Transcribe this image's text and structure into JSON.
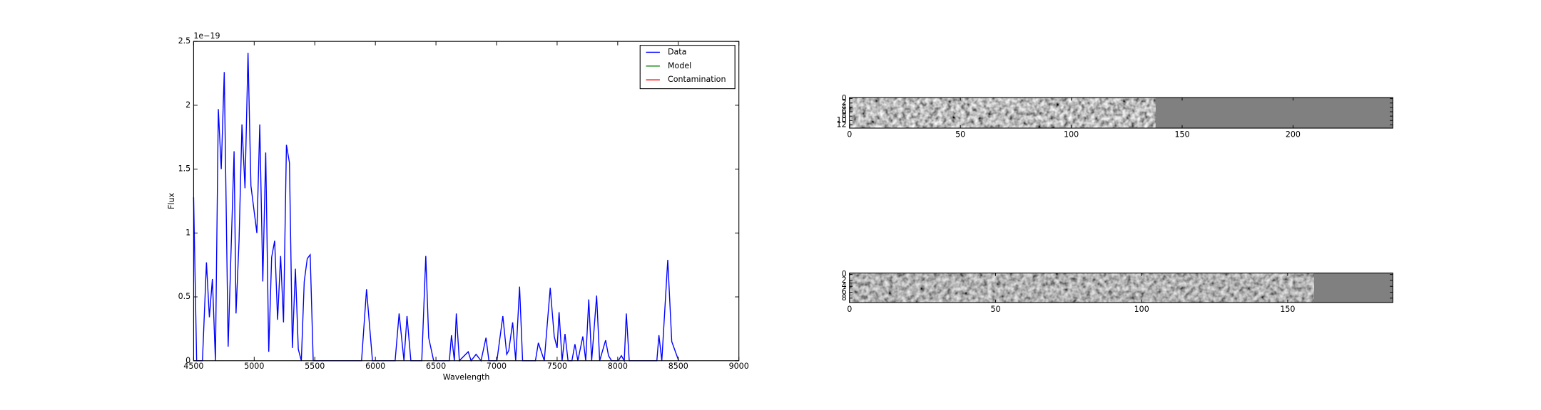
{
  "chart_data": [
    {
      "type": "line",
      "x_label": "Wavelength",
      "y_label": "Flux",
      "y_offset_label": "1e−19",
      "xlim": [
        4500,
        9000
      ],
      "xticks": [
        4500,
        5000,
        5500,
        6000,
        6500,
        7000,
        7500,
        8000,
        8500,
        9000
      ],
      "ylim": [
        0,
        2.5
      ],
      "yticks": [
        0.0,
        0.5,
        1.0,
        1.5,
        2.0,
        2.5
      ],
      "legend": "upper right",
      "x": [
        4500,
        4525,
        4573,
        4606,
        4630,
        4655,
        4680,
        4704,
        4728,
        4753,
        4785,
        4834,
        4850,
        4875,
        4899,
        4924,
        4949,
        4973,
        5022,
        5046,
        5071,
        5095,
        5120,
        5144,
        5169,
        5193,
        5218,
        5242,
        5266,
        5291,
        5315,
        5340,
        5364,
        5389,
        5413,
        5438,
        5462,
        5487,
        5886,
        5927,
        5976,
        6163,
        6196,
        6236,
        6261,
        6293,
        6383,
        6416,
        6440,
        6481,
        6611,
        6628,
        6652,
        6668,
        6693,
        6766,
        6790,
        6831,
        6872,
        6913,
        6937,
        7003,
        7052,
        7084,
        7101,
        7133,
        7158,
        7190,
        7215,
        7321,
        7345,
        7394,
        7443,
        7476,
        7500,
        7516,
        7541,
        7565,
        7590,
        7622,
        7647,
        7671,
        7712,
        7736,
        7761,
        7785,
        7826,
        7851,
        7900,
        7924,
        7949,
        8005,
        8030,
        8054,
        8071,
        8095,
        8323,
        8340,
        8364,
        8413,
        8446,
        8503
      ],
      "series": [
        {
          "name": "Data",
          "color": "#0000ff",
          "values": [
            1.28,
            0,
            0,
            0.77,
            0.34,
            0.64,
            0,
            1.97,
            1.5,
            2.26,
            0.11,
            1.64,
            0.37,
            0.94,
            1.85,
            1.35,
            2.41,
            1.37,
            1.0,
            1.85,
            0.62,
            1.63,
            0.07,
            0.81,
            0.94,
            0.32,
            0.82,
            0.3,
            1.69,
            1.55,
            0.1,
            0.72,
            0.09,
            0,
            0.62,
            0.8,
            0.83,
            0,
            0,
            0.56,
            0,
            0,
            0.37,
            0,
            0.35,
            0,
            0,
            0.82,
            0.18,
            0,
            0,
            0.2,
            0,
            0.37,
            0,
            0.07,
            0,
            0.05,
            0,
            0.18,
            0,
            0,
            0.35,
            0.05,
            0.08,
            0.3,
            0,
            0.58,
            0,
            0,
            0.14,
            0,
            0.57,
            0.19,
            0.1,
            0.38,
            0,
            0.21,
            0,
            0,
            0.13,
            0,
            0.19,
            0,
            0.48,
            0,
            0.51,
            0,
            0.16,
            0.04,
            0,
            0,
            0.04,
            0,
            0.37,
            0,
            0,
            0.2,
            0,
            0.79,
            0.15,
            0
          ]
        },
        {
          "name": "Model",
          "color": "#008000",
          "values": [
            null,
            null,
            null,
            null,
            null,
            null,
            null,
            null,
            null,
            null,
            null,
            null,
            null,
            null,
            null,
            null,
            null,
            null,
            null,
            null,
            null,
            null,
            null,
            null,
            null,
            null,
            null,
            null,
            null,
            null,
            null,
            null,
            null,
            null,
            null,
            null,
            null,
            null,
            null,
            null,
            null,
            null,
            null,
            null,
            null,
            null,
            null,
            null,
            null,
            null,
            null,
            null,
            null,
            null,
            null,
            null,
            null,
            null,
            null,
            null,
            null,
            null,
            null,
            null,
            null,
            null,
            null,
            null,
            null,
            null,
            null,
            null,
            null,
            null,
            null,
            null,
            null,
            null,
            null,
            null,
            null,
            null,
            null,
            null,
            null,
            null,
            null,
            null,
            null,
            null,
            null,
            null,
            null,
            null,
            null,
            null,
            null,
            null,
            null,
            null,
            null,
            null
          ]
        },
        {
          "name": "Contamination",
          "color": "#ff0000",
          "values": [
            null,
            null,
            null,
            null,
            null,
            null,
            null,
            null,
            null,
            null,
            null,
            null,
            null,
            null,
            null,
            null,
            null,
            null,
            null,
            null,
            null,
            null,
            null,
            null,
            null,
            null,
            null,
            null,
            null,
            null,
            null,
            null,
            null,
            null,
            null,
            null,
            null,
            null,
            null,
            null,
            null,
            null,
            null,
            null,
            null,
            null,
            null,
            null,
            null,
            null,
            null,
            null,
            null,
            null,
            null,
            null,
            null,
            null,
            null,
            null,
            null,
            null,
            null,
            null,
            null,
            null,
            null,
            null,
            null,
            null,
            null,
            null,
            null,
            null,
            null,
            null,
            null,
            null,
            null,
            null,
            null,
            null,
            null,
            null,
            null,
            null,
            null,
            null,
            null,
            null,
            null,
            null,
            null,
            null,
            null,
            null,
            null,
            null,
            null,
            null,
            null,
            null
          ]
        }
      ]
    },
    {
      "type": "image",
      "xlim": [
        0,
        245
      ],
      "xticks": [
        0,
        50,
        100,
        150,
        200
      ],
      "ylim": [
        -0.5,
        13.5
      ],
      "yticks": [
        0,
        2,
        4,
        6,
        8,
        10,
        12
      ]
    },
    {
      "type": "image",
      "xlim": [
        0,
        186
      ],
      "xticks": [
        0,
        50,
        100,
        150
      ],
      "ylim": [
        -0.5,
        9.5
      ],
      "yticks": [
        0,
        2,
        4,
        6,
        8
      ]
    }
  ]
}
